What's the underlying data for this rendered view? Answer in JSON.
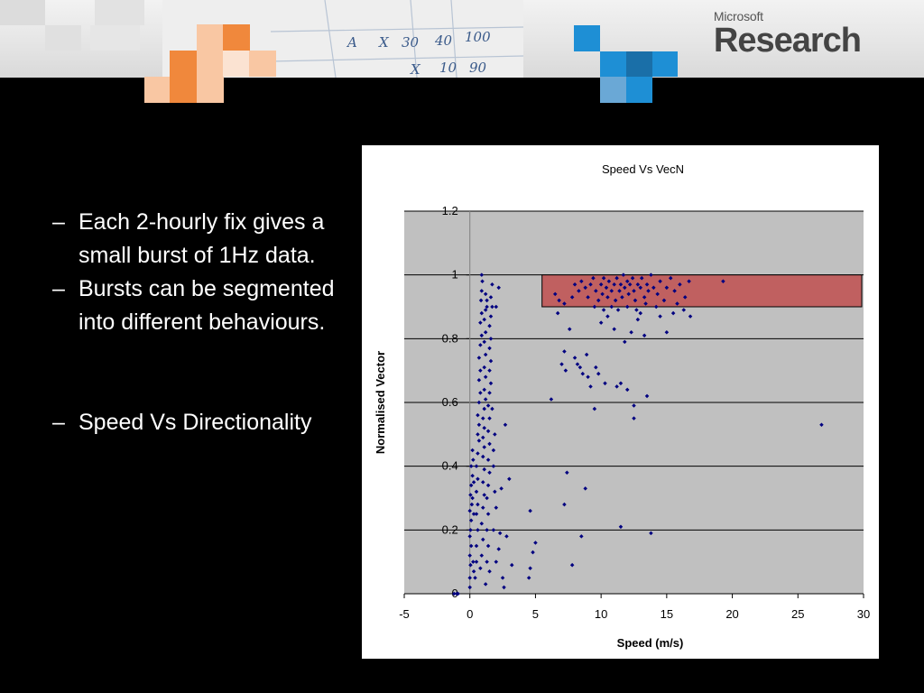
{
  "brand": {
    "company": "Microsoft",
    "division": "Research"
  },
  "header": {
    "handwriting": [
      "A",
      "X",
      "30",
      "40",
      "100",
      "X",
      "10",
      "90"
    ],
    "colors": {
      "orange": "#f0883c",
      "light_orange": "#f9c7a3",
      "blue": "#1e8fd5",
      "light_blue": "#6aa8d6"
    }
  },
  "bullets": [
    {
      "dash": "–",
      "text": "Each 2-hourly fix gives a small burst of 1Hz data."
    },
    {
      "dash": "–",
      "text": "Bursts can be segmented into different behaviours."
    },
    {
      "dash": "–",
      "text": "Speed Vs Directionality"
    }
  ],
  "chart_data": {
    "type": "scatter",
    "title": "Speed Vs VecN",
    "xlabel": "Speed (m/s)",
    "ylabel": "Normalised Vector",
    "xlim": [
      -5,
      30
    ],
    "ylim": [
      0,
      1.2
    ],
    "x_ticks": [
      "-5",
      "0",
      "5",
      "10",
      "15",
      "20",
      "25",
      "30"
    ],
    "y_ticks": [
      "0",
      "0.2",
      "0.4",
      "0.6",
      "0.8",
      "1",
      "1.2"
    ],
    "grid": "horizontal",
    "plot_background": "#c0c0c0",
    "point_color": "#000080",
    "highlight": {
      "x": [
        5.5,
        30
      ],
      "y": [
        0.9,
        1.0
      ],
      "color": "#c06060"
    },
    "series": [
      {
        "points": [
          [
            -1.2,
            0.0
          ],
          [
            -1.0,
            0.0
          ],
          [
            -0.9,
            0.0
          ],
          [
            0.0,
            0.02
          ],
          [
            0.0,
            0.05
          ],
          [
            0.05,
            0.09
          ],
          [
            0.0,
            0.12
          ],
          [
            0.1,
            0.15
          ],
          [
            0.0,
            0.18
          ],
          [
            0.05,
            0.2
          ],
          [
            0.1,
            0.23
          ],
          [
            0.0,
            0.26
          ],
          [
            0.15,
            0.28
          ],
          [
            0.05,
            0.31
          ],
          [
            0.1,
            0.34
          ],
          [
            0.2,
            0.37
          ],
          [
            0.1,
            0.4
          ],
          [
            0.25,
            0.42
          ],
          [
            0.2,
            0.45
          ],
          [
            0.3,
            0.35
          ],
          [
            0.2,
            0.3
          ],
          [
            0.3,
            0.25
          ],
          [
            0.25,
            0.1
          ],
          [
            0.3,
            0.07
          ],
          [
            0.4,
            0.05
          ],
          [
            0.5,
            0.1
          ],
          [
            0.5,
            0.15
          ],
          [
            0.6,
            0.2
          ],
          [
            0.5,
            0.25
          ],
          [
            0.6,
            0.28
          ],
          [
            0.5,
            0.32
          ],
          [
            0.6,
            0.36
          ],
          [
            0.5,
            0.4
          ],
          [
            0.6,
            0.44
          ],
          [
            0.7,
            0.48
          ],
          [
            0.6,
            0.5
          ],
          [
            0.7,
            0.53
          ],
          [
            0.6,
            0.56
          ],
          [
            0.7,
            0.6
          ],
          [
            0.8,
            0.63
          ],
          [
            0.7,
            0.67
          ],
          [
            0.8,
            0.7
          ],
          [
            0.7,
            0.74
          ],
          [
            0.8,
            0.78
          ],
          [
            0.9,
            0.81
          ],
          [
            0.8,
            0.85
          ],
          [
            0.9,
            0.88
          ],
          [
            0.85,
            0.92
          ],
          [
            0.9,
            0.95
          ],
          [
            0.9,
            1.0
          ],
          [
            0.95,
            0.98
          ],
          [
            0.8,
            0.08
          ],
          [
            0.9,
            0.12
          ],
          [
            1.0,
            0.17
          ],
          [
            0.9,
            0.22
          ],
          [
            1.0,
            0.27
          ],
          [
            1.1,
            0.31
          ],
          [
            1.0,
            0.35
          ],
          [
            1.1,
            0.39
          ],
          [
            1.0,
            0.43
          ],
          [
            1.1,
            0.46
          ],
          [
            1.0,
            0.49
          ],
          [
            1.1,
            0.52
          ],
          [
            1.0,
            0.55
          ],
          [
            1.1,
            0.58
          ],
          [
            1.2,
            0.61
          ],
          [
            1.1,
            0.64
          ],
          [
            1.2,
            0.68
          ],
          [
            1.1,
            0.71
          ],
          [
            1.2,
            0.75
          ],
          [
            1.1,
            0.79
          ],
          [
            1.2,
            0.82
          ],
          [
            1.1,
            0.86
          ],
          [
            1.2,
            0.89
          ],
          [
            1.3,
            0.92
          ],
          [
            1.2,
            0.94
          ],
          [
            1.3,
            0.9
          ],
          [
            1.3,
            0.1
          ],
          [
            1.4,
            0.15
          ],
          [
            1.3,
            0.2
          ],
          [
            1.4,
            0.25
          ],
          [
            1.3,
            0.3
          ],
          [
            1.4,
            0.34
          ],
          [
            1.5,
            0.38
          ],
          [
            1.4,
            0.42
          ],
          [
            1.5,
            0.47
          ],
          [
            1.4,
            0.51
          ],
          [
            1.5,
            0.55
          ],
          [
            1.4,
            0.59
          ],
          [
            1.5,
            0.63
          ],
          [
            1.6,
            0.66
          ],
          [
            1.5,
            0.7
          ],
          [
            1.6,
            0.73
          ],
          [
            1.5,
            0.77
          ],
          [
            1.6,
            0.8
          ],
          [
            1.5,
            0.84
          ],
          [
            1.6,
            0.87
          ],
          [
            1.7,
            0.9
          ],
          [
            1.6,
            0.93
          ],
          [
            1.8,
            0.2
          ],
          [
            1.9,
            0.32
          ],
          [
            1.8,
            0.45
          ],
          [
            1.9,
            0.5
          ],
          [
            1.7,
            0.58
          ],
          [
            1.8,
            0.4
          ],
          [
            1.2,
            0.03
          ],
          [
            1.5,
            0.07
          ],
          [
            2.0,
            0.1
          ],
          [
            2.2,
            0.14
          ],
          [
            2.3,
            0.19
          ],
          [
            2.0,
            0.27
          ],
          [
            2.4,
            0.33
          ],
          [
            2.2,
            0.96
          ],
          [
            2.0,
            0.9
          ],
          [
            1.7,
            0.97
          ],
          [
            2.5,
            0.05
          ],
          [
            2.6,
            0.02
          ],
          [
            2.7,
            0.53
          ],
          [
            3.0,
            0.36
          ],
          [
            3.2,
            0.09
          ],
          [
            2.8,
            0.18
          ],
          [
            4.6,
            0.26
          ],
          [
            4.6,
            0.08
          ],
          [
            4.5,
            0.05
          ],
          [
            4.8,
            0.13
          ],
          [
            5.0,
            0.16
          ],
          [
            6.2,
            0.61
          ],
          [
            6.5,
            0.94
          ],
          [
            6.7,
            0.88
          ],
          [
            7.0,
            0.72
          ],
          [
            7.2,
            0.76
          ],
          [
            7.3,
            0.7
          ],
          [
            7.4,
            0.38
          ],
          [
            7.2,
            0.28
          ],
          [
            7.8,
            0.09
          ],
          [
            7.6,
            0.83
          ],
          [
            8.0,
            0.74
          ],
          [
            8.2,
            0.72
          ],
          [
            8.4,
            0.71
          ],
          [
            8.5,
            0.18
          ],
          [
            8.6,
            0.69
          ],
          [
            8.8,
            0.33
          ],
          [
            8.9,
            0.75
          ],
          [
            9.0,
            0.68
          ],
          [
            9.2,
            0.65
          ],
          [
            9.5,
            0.58
          ],
          [
            9.6,
            0.71
          ],
          [
            9.8,
            0.69
          ],
          [
            10.0,
            0.85
          ],
          [
            10.3,
            0.66
          ],
          [
            10.5,
            0.87
          ],
          [
            11.0,
            0.83
          ],
          [
            11.2,
            0.65
          ],
          [
            11.5,
            0.66
          ],
          [
            11.5,
            0.21
          ],
          [
            11.8,
            0.79
          ],
          [
            12.0,
            0.64
          ],
          [
            12.3,
            0.82
          ],
          [
            12.5,
            0.55
          ],
          [
            12.5,
            0.59
          ],
          [
            12.8,
            0.86
          ],
          [
            13.0,
            0.88
          ],
          [
            13.3,
            0.81
          ],
          [
            13.5,
            0.62
          ],
          [
            13.8,
            0.19
          ],
          [
            14.5,
            0.87
          ],
          [
            15.0,
            0.82
          ],
          [
            15.5,
            0.88
          ],
          [
            16.8,
            0.87
          ],
          [
            26.8,
            0.53
          ],
          [
            6.8,
            0.92
          ],
          [
            7.2,
            0.91
          ],
          [
            7.8,
            0.93
          ],
          [
            8.0,
            0.97
          ],
          [
            8.3,
            0.95
          ],
          [
            8.5,
            0.98
          ],
          [
            8.8,
            0.96
          ],
          [
            9.0,
            0.93
          ],
          [
            9.2,
            0.97
          ],
          [
            9.4,
            0.99
          ],
          [
            9.6,
            0.95
          ],
          [
            9.8,
            0.92
          ],
          [
            10.0,
            0.97
          ],
          [
            10.1,
            0.94
          ],
          [
            10.2,
            0.99
          ],
          [
            10.4,
            0.96
          ],
          [
            10.5,
            0.93
          ],
          [
            10.6,
            0.98
          ],
          [
            10.8,
            0.95
          ],
          [
            11.0,
            0.97
          ],
          [
            11.1,
            0.92
          ],
          [
            11.2,
            0.99
          ],
          [
            11.4,
            0.95
          ],
          [
            11.5,
            0.97
          ],
          [
            11.6,
            0.93
          ],
          [
            11.7,
            1.0
          ],
          [
            11.8,
            0.96
          ],
          [
            12.0,
            0.98
          ],
          [
            12.1,
            0.94
          ],
          [
            12.2,
            0.97
          ],
          [
            12.4,
            0.99
          ],
          [
            12.5,
            0.95
          ],
          [
            12.6,
            0.92
          ],
          [
            12.8,
            0.97
          ],
          [
            13.0,
            0.96
          ],
          [
            13.1,
            0.99
          ],
          [
            13.3,
            0.93
          ],
          [
            13.5,
            0.97
          ],
          [
            13.6,
            0.95
          ],
          [
            13.8,
            1.0
          ],
          [
            14.0,
            0.96
          ],
          [
            14.3,
            0.94
          ],
          [
            14.5,
            0.98
          ],
          [
            14.8,
            0.92
          ],
          [
            15.0,
            0.96
          ],
          [
            15.3,
            0.99
          ],
          [
            15.6,
            0.95
          ],
          [
            16.0,
            0.97
          ],
          [
            16.4,
            0.93
          ],
          [
            16.7,
            0.98
          ],
          [
            19.3,
            0.98
          ],
          [
            9.5,
            0.9
          ],
          [
            10.2,
            0.89
          ],
          [
            10.8,
            0.9
          ],
          [
            11.3,
            0.89
          ],
          [
            12.0,
            0.9
          ],
          [
            12.7,
            0.89
          ],
          [
            13.4,
            0.91
          ],
          [
            14.2,
            0.9
          ],
          [
            15.8,
            0.91
          ],
          [
            16.3,
            0.89
          ]
        ]
      }
    ]
  }
}
